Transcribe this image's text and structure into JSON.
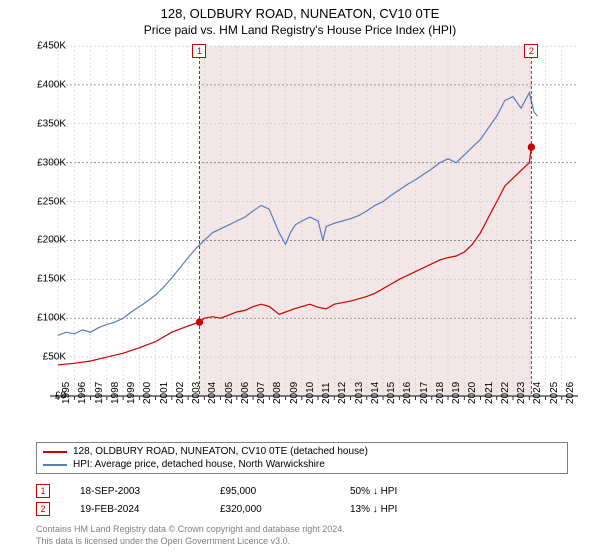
{
  "title": "128, OLDBURY ROAD, NUNEATON, CV10 0TE",
  "subtitle": "Price paid vs. HM Land Registry's House Price Index (HPI)",
  "chart": {
    "type": "line",
    "background_color": "#ffffff",
    "band_color": "#f2e6e6",
    "grid_color_major": "#808080",
    "grid_color_minor": "#cccccc",
    "axis_label_fontsize": 10,
    "title_fontsize": 13,
    "subtitle_fontsize": 12,
    "xlim": [
      1994.5,
      2027
    ],
    "ylim": [
      0,
      450
    ],
    "y_ticks": [
      0,
      50,
      100,
      150,
      200,
      250,
      300,
      350,
      400,
      450
    ],
    "y_tick_labels": [
      "£0",
      "£50K",
      "£100K",
      "£150K",
      "£200K",
      "£250K",
      "£300K",
      "£350K",
      "£400K",
      "£450K"
    ],
    "x_ticks": [
      1995,
      1996,
      1997,
      1998,
      1999,
      2000,
      2001,
      2002,
      2003,
      2004,
      2005,
      2006,
      2007,
      2008,
      2009,
      2010,
      2011,
      2012,
      2013,
      2014,
      2015,
      2016,
      2017,
      2018,
      2019,
      2020,
      2021,
      2022,
      2023,
      2024,
      2025,
      2026
    ],
    "series": [
      {
        "name": "128, OLDBURY ROAD, NUNEATON, CV10 0TE (detached house)",
        "color": "#cc0000",
        "points": [
          [
            1995,
            40
          ],
          [
            1996,
            42
          ],
          [
            1997,
            45
          ],
          [
            1998,
            50
          ],
          [
            1999,
            55
          ],
          [
            2000,
            62
          ],
          [
            2001,
            70
          ],
          [
            2002,
            82
          ],
          [
            2003,
            90
          ],
          [
            2003.7,
            95
          ],
          [
            2004,
            100
          ],
          [
            2004.5,
            102
          ],
          [
            2005,
            100
          ],
          [
            2005.5,
            104
          ],
          [
            2006,
            108
          ],
          [
            2006.5,
            110
          ],
          [
            2007,
            115
          ],
          [
            2007.5,
            118
          ],
          [
            2008,
            115
          ],
          [
            2008.3,
            110
          ],
          [
            2008.6,
            105
          ],
          [
            2009,
            108
          ],
          [
            2009.5,
            112
          ],
          [
            2010,
            115
          ],
          [
            2010.5,
            118
          ],
          [
            2011,
            114
          ],
          [
            2011.5,
            112
          ],
          [
            2012,
            118
          ],
          [
            2012.5,
            120
          ],
          [
            2013,
            122
          ],
          [
            2013.5,
            125
          ],
          [
            2014,
            128
          ],
          [
            2014.5,
            132
          ],
          [
            2015,
            138
          ],
          [
            2015.5,
            144
          ],
          [
            2016,
            150
          ],
          [
            2016.5,
            155
          ],
          [
            2017,
            160
          ],
          [
            2017.5,
            165
          ],
          [
            2018,
            170
          ],
          [
            2018.5,
            175
          ],
          [
            2019,
            178
          ],
          [
            2019.5,
            180
          ],
          [
            2020,
            185
          ],
          [
            2020.5,
            195
          ],
          [
            2021,
            210
          ],
          [
            2021.5,
            230
          ],
          [
            2022,
            250
          ],
          [
            2022.5,
            270
          ],
          [
            2023,
            280
          ],
          [
            2023.5,
            290
          ],
          [
            2024,
            300
          ],
          [
            2024.13,
            320
          ]
        ]
      },
      {
        "name": "HPI: Average price, detached house, North Warwickshire",
        "color": "#5b7cba",
        "points": [
          [
            1995,
            78
          ],
          [
            1995.5,
            82
          ],
          [
            1996,
            80
          ],
          [
            1996.5,
            85
          ],
          [
            1997,
            82
          ],
          [
            1997.5,
            88
          ],
          [
            1998,
            92
          ],
          [
            1998.5,
            95
          ],
          [
            1999,
            100
          ],
          [
            1999.5,
            108
          ],
          [
            2000,
            115
          ],
          [
            2000.5,
            122
          ],
          [
            2001,
            130
          ],
          [
            2001.5,
            140
          ],
          [
            2002,
            152
          ],
          [
            2002.5,
            165
          ],
          [
            2003,
            178
          ],
          [
            2003.5,
            190
          ],
          [
            2004,
            200
          ],
          [
            2004.5,
            210
          ],
          [
            2005,
            215
          ],
          [
            2005.5,
            220
          ],
          [
            2006,
            225
          ],
          [
            2006.5,
            230
          ],
          [
            2007,
            238
          ],
          [
            2007.5,
            245
          ],
          [
            2008,
            240
          ],
          [
            2008.3,
            225
          ],
          [
            2008.6,
            210
          ],
          [
            2009,
            195
          ],
          [
            2009.3,
            210
          ],
          [
            2009.6,
            220
          ],
          [
            2010,
            225
          ],
          [
            2010.5,
            230
          ],
          [
            2011,
            225
          ],
          [
            2011.3,
            200
          ],
          [
            2011.5,
            218
          ],
          [
            2012,
            222
          ],
          [
            2012.5,
            225
          ],
          [
            2013,
            228
          ],
          [
            2013.5,
            232
          ],
          [
            2014,
            238
          ],
          [
            2014.5,
            245
          ],
          [
            2015,
            250
          ],
          [
            2015.5,
            258
          ],
          [
            2016,
            265
          ],
          [
            2016.5,
            272
          ],
          [
            2017,
            278
          ],
          [
            2017.5,
            285
          ],
          [
            2018,
            292
          ],
          [
            2018.5,
            300
          ],
          [
            2019,
            305
          ],
          [
            2019.5,
            300
          ],
          [
            2020,
            310
          ],
          [
            2020.5,
            320
          ],
          [
            2021,
            330
          ],
          [
            2021.5,
            345
          ],
          [
            2022,
            360
          ],
          [
            2022.5,
            380
          ],
          [
            2023,
            385
          ],
          [
            2023.5,
            370
          ],
          [
            2024,
            390
          ],
          [
            2024.3,
            365
          ],
          [
            2024.5,
            360
          ]
        ]
      }
    ],
    "sale_markers": [
      {
        "n": "1",
        "x": 2003.7,
        "y": 95,
        "color": "#cc0000"
      },
      {
        "n": "2",
        "x": 2024.13,
        "y": 320,
        "color": "#cc0000"
      }
    ]
  },
  "legend": {
    "items": [
      {
        "label": "128, OLDBURY ROAD, NUNEATON, CV10 0TE (detached house)",
        "color": "#cc0000"
      },
      {
        "label": "HPI: Average price, detached house, North Warwickshire",
        "color": "#5b7cba"
      }
    ]
  },
  "marker_rows": [
    {
      "n": "1",
      "date": "18-SEP-2003",
      "price": "£95,000",
      "delta": "50% ↓ HPI",
      "color": "#cc0000"
    },
    {
      "n": "2",
      "date": "19-FEB-2024",
      "price": "£320,000",
      "delta": "13% ↓ HPI",
      "color": "#cc0000"
    }
  ],
  "footer_line1": "Contains HM Land Registry data © Crown copyright and database right 2024.",
  "footer_line2": "This data is licensed under the Open Government Licence v3.0."
}
